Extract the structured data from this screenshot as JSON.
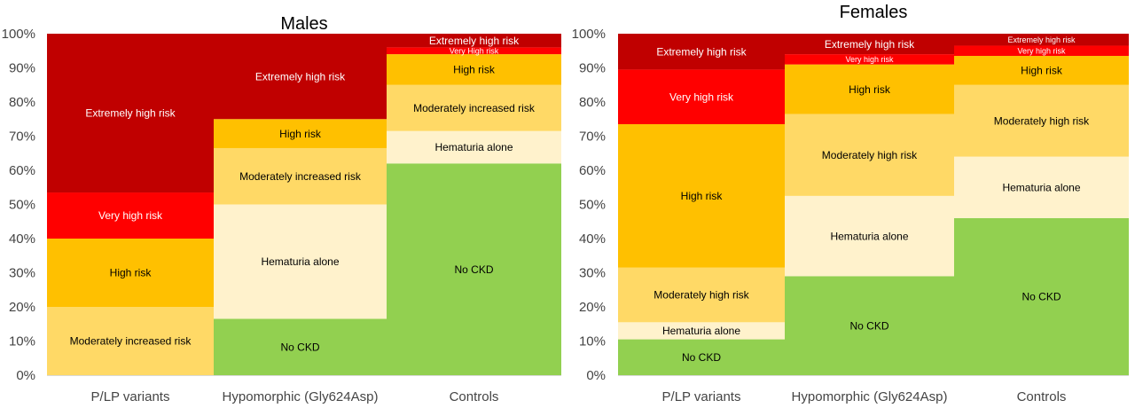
{
  "chart_data": [
    {
      "type": "bar",
      "stacked": true,
      "title": "Males",
      "categories": [
        "P/LP variants",
        "Hypomorphic (Gly624Asp)",
        "Controls"
      ],
      "ylim": [
        0,
        100
      ],
      "yticks": [
        "0%",
        "10%",
        "20%",
        "30%",
        "40%",
        "50%",
        "60%",
        "70%",
        "80%",
        "90%",
        "100%"
      ],
      "grid": false,
      "legend": "none",
      "series": [
        {
          "name": "No CKD",
          "color": "#92d050",
          "text_color": "#000000",
          "values": [
            0,
            16.5,
            62
          ],
          "labels": [
            "",
            "No CKD",
            "No CKD"
          ]
        },
        {
          "name": "Hematuria alone",
          "color": "#fff2cc",
          "text_color": "#000000",
          "values": [
            0,
            33.5,
            9.5
          ],
          "labels": [
            "",
            "Hematuria alone",
            "Hematuria alone"
          ]
        },
        {
          "name": "Moderately increased risk",
          "color": "#ffd966",
          "text_color": "#000000",
          "values": [
            20,
            16.5,
            13.5
          ],
          "labels": [
            "Moderately increased risk",
            "Moderately increased risk",
            "Moderately increased risk"
          ]
        },
        {
          "name": "High risk",
          "color": "#ffc000",
          "text_color": "#000000",
          "values": [
            20,
            8.5,
            9
          ],
          "labels": [
            "High risk",
            "High risk",
            "High risk"
          ]
        },
        {
          "name": "Very high risk",
          "color": "#ff0000",
          "text_color": "#ffffff",
          "values": [
            13.5,
            0,
            2
          ],
          "labels": [
            "Very high risk",
            "",
            "Very High risk"
          ]
        },
        {
          "name": "Extremely high risk",
          "color": "#c00000",
          "text_color": "#ffffff",
          "values": [
            46.5,
            25,
            4
          ],
          "labels": [
            "Extremely high risk",
            "Extremely high risk",
            "Extremely high risk"
          ]
        }
      ]
    },
    {
      "type": "bar",
      "stacked": true,
      "title": "Females",
      "categories": [
        "P/LP variants",
        "Hypomorphic (Gly624Asp)",
        "Controls"
      ],
      "ylim": [
        0,
        100
      ],
      "yticks": [
        "0%",
        "10%",
        "20%",
        "30%",
        "40%",
        "50%",
        "60%",
        "70%",
        "80%",
        "90%",
        "100%"
      ],
      "grid": false,
      "legend": "none",
      "series": [
        {
          "name": "No CKD",
          "color": "#92d050",
          "text_color": "#000000",
          "values": [
            10.5,
            29,
            46
          ],
          "labels": [
            "No CKD",
            "No CKD",
            "No CKD"
          ]
        },
        {
          "name": "Hematuria alone",
          "color": "#fff2cc",
          "text_color": "#000000",
          "values": [
            5,
            23.5,
            18
          ],
          "labels": [
            "Hematuria alone",
            "Hematuria alone",
            "Hematuria alone"
          ]
        },
        {
          "name": "Moderately high risk",
          "color": "#ffd966",
          "text_color": "#000000",
          "values": [
            16,
            24,
            21
          ],
          "labels": [
            "Moderately high risk",
            "Moderately high risk",
            "Moderately high risk"
          ]
        },
        {
          "name": "High risk",
          "color": "#ffc000",
          "text_color": "#000000",
          "values": [
            42,
            14.5,
            8.5
          ],
          "labels": [
            "High risk",
            "High risk",
            "High risk"
          ]
        },
        {
          "name": "Very high risk",
          "color": "#ff0000",
          "text_color": "#ffffff",
          "values": [
            16,
            3,
            3
          ],
          "labels": [
            "Very high risk",
            "Very high risk",
            "Very high risk"
          ]
        },
        {
          "name": "Extremely high risk",
          "color": "#c00000",
          "text_color": "#ffffff",
          "values": [
            10.5,
            6,
            3.5
          ],
          "labels": [
            "Extremely high risk",
            "Extremely high risk",
            "Extremely high risk"
          ]
        }
      ]
    }
  ]
}
